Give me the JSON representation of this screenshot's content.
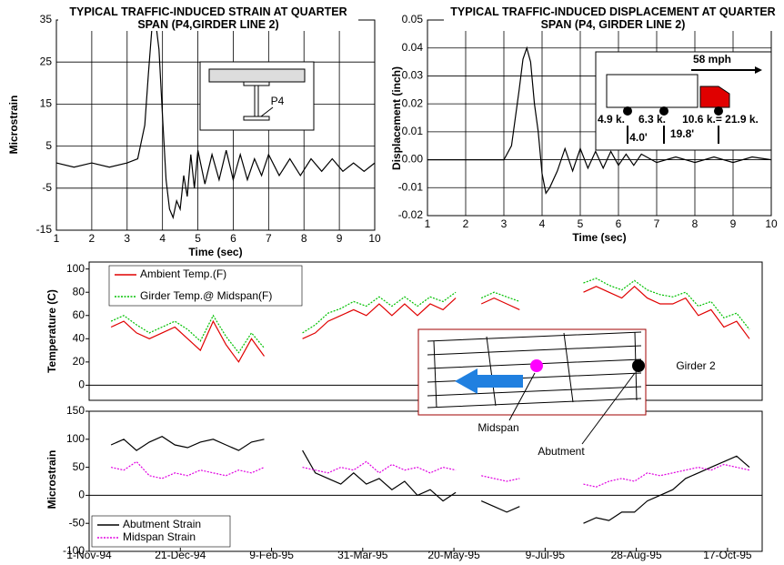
{
  "chart_data": [
    {
      "type": "line",
      "title": "TYPICAL TRAFFIC-INDUCED STRAIN AT QUARTER SPAN (P4,GIRDER LINE 2)",
      "x_label": "Time (sec)",
      "y_label": "Microstrain",
      "color": "#000000",
      "grid": true,
      "x": [
        1,
        1.5,
        2,
        2.5,
        3,
        3.3,
        3.5,
        3.6,
        3.7,
        3.8,
        3.9,
        4.0,
        4.1,
        4.2,
        4.3,
        4.4,
        4.5,
        4.6,
        4.7,
        4.8,
        4.9,
        5.0,
        5.2,
        5.4,
        5.6,
        5.8,
        6.0,
        6.2,
        6.4,
        6.6,
        6.8,
        7.0,
        7.3,
        7.6,
        7.9,
        8.2,
        8.5,
        8.8,
        9.1,
        9.4,
        9.7,
        10
      ],
      "values": [
        1,
        0,
        1,
        0,
        1,
        2,
        10,
        22,
        33,
        35,
        28,
        12,
        -3,
        -10,
        -12,
        -8,
        -10,
        -2,
        -7,
        3,
        -5,
        4,
        -4,
        3,
        -3,
        4,
        -3,
        3,
        -3,
        2,
        -2,
        3,
        -2,
        2,
        -2,
        2,
        -1,
        2,
        -1,
        1,
        -1,
        1
      ],
      "xlim": [
        1,
        10
      ],
      "xticks": [
        1,
        2,
        3,
        4,
        5,
        6,
        7,
        8,
        9,
        10
      ],
      "ylim": [
        -15,
        35
      ],
      "yticks": [
        -15,
        -5,
        5,
        15,
        25,
        35
      ],
      "annotations": [
        "P4"
      ]
    },
    {
      "type": "line",
      "title": "TYPICAL TRAFFIC-INDUCED DISPLACEMENT AT QUARTER SPAN (P4, GIRDER LINE 2)",
      "x_label": "Time (sec)",
      "y_label": "Displacement (inch)",
      "color": "#000000",
      "grid": true,
      "x": [
        1,
        2,
        3,
        3.2,
        3.4,
        3.5,
        3.6,
        3.7,
        3.8,
        3.9,
        4.0,
        4.1,
        4.2,
        4.4,
        4.6,
        4.8,
        5.0,
        5.2,
        5.4,
        5.6,
        5.8,
        6.0,
        6.2,
        6.4,
        6.6,
        7,
        7.5,
        8,
        8.5,
        9,
        9.5,
        10
      ],
      "values": [
        0,
        0,
        0,
        0.005,
        0.025,
        0.036,
        0.04,
        0.035,
        0.02,
        0.01,
        -0.005,
        -0.012,
        -0.01,
        -0.004,
        0.004,
        -0.004,
        0.004,
        -0.003,
        0.003,
        -0.003,
        0.003,
        -0.002,
        0.002,
        -0.002,
        0.002,
        -0.001,
        0.001,
        -0.001,
        0.001,
        -0.001,
        0.001,
        0
      ],
      "xlim": [
        1,
        10
      ],
      "xticks": [
        1,
        2,
        3,
        4,
        5,
        6,
        7,
        8,
        9,
        10
      ],
      "ylim": [
        -0.02,
        0.05
      ],
      "yticks": [
        -0.02,
        -0.01,
        {
          "value": 0,
          "label": "0.00"
        },
        0.01,
        0.02,
        0.03,
        0.04,
        0.05
      ],
      "annotations": [
        "58 mph",
        "4.9 k.",
        "6.3 k.",
        "10.6 k.= 21.9 k.",
        "4.0'",
        "19.8'"
      ]
    },
    {
      "type": "line",
      "y_label": "Temperature (C)",
      "grid": false,
      "x": [
        "1994-11-13",
        "1994-11-20",
        "1994-11-27",
        "1994-12-04",
        "1994-12-11",
        "1994-12-18",
        "1994-12-25",
        "1995-01-01",
        "1995-01-08",
        "1995-01-15",
        "1995-01-22",
        "1995-01-29",
        "1995-02-05",
        "1995-02-12",
        "1995-02-19",
        "1995-02-26",
        "1995-03-05",
        "1995-03-12",
        "1995-03-19",
        "1995-03-26",
        "1995-04-02",
        "1995-04-09",
        "1995-04-16",
        "1995-04-23",
        "1995-04-30",
        "1995-05-07",
        "1995-05-14",
        "1995-05-21",
        "1995-05-28",
        "1995-06-04",
        "1995-06-11",
        "1995-06-18",
        "1995-06-25",
        "1995-07-02",
        "1995-07-09",
        "1995-07-16",
        "1995-07-23",
        "1995-07-30",
        "1995-08-06",
        "1995-08-13",
        "1995-08-20",
        "1995-08-27",
        "1995-09-03",
        "1995-09-10",
        "1995-09-17",
        "1995-09-24",
        "1995-10-01",
        "1995-10-08",
        "1995-10-15",
        "1995-10-22",
        "1995-10-29"
      ],
      "series": [
        {
          "name": "Ambient Temp.(F)",
          "color": "#e00000",
          "line_style": "solid",
          "values": [
            50,
            55,
            45,
            40,
            45,
            50,
            40,
            30,
            55,
            35,
            20,
            40,
            25,
            null,
            null,
            40,
            45,
            55,
            60,
            65,
            60,
            70,
            60,
            70,
            60,
            70,
            65,
            75,
            null,
            70,
            75,
            70,
            65,
            null,
            null,
            null,
            null,
            80,
            85,
            80,
            75,
            85,
            75,
            70,
            70,
            75,
            60,
            65,
            50,
            55,
            40
          ]
        },
        {
          "name": "Girder Temp.@ Midspan(F)",
          "color": "#00c000",
          "line_style": "dotted",
          "values": [
            55,
            60,
            52,
            45,
            50,
            55,
            48,
            38,
            60,
            42,
            28,
            45,
            32,
            null,
            null,
            45,
            52,
            62,
            66,
            72,
            68,
            76,
            68,
            76,
            68,
            76,
            72,
            80,
            null,
            75,
            80,
            76,
            72,
            null,
            null,
            null,
            null,
            88,
            92,
            86,
            82,
            90,
            82,
            78,
            76,
            80,
            68,
            72,
            58,
            62,
            48
          ]
        }
      ],
      "xlim": [
        "1994-11-01",
        "1995-11-05"
      ],
      "ylim": [
        -13,
        106
      ],
      "yticks": [
        0,
        20,
        40,
        60,
        80,
        100
      ],
      "annotations": [
        "Girder 2",
        "Midspan",
        "Abutment"
      ]
    },
    {
      "type": "line",
      "y_label": "Microstrain",
      "grid": false,
      "x": [
        "1994-11-13",
        "1994-11-20",
        "1994-11-27",
        "1994-12-04",
        "1994-12-11",
        "1994-12-18",
        "1994-12-25",
        "1995-01-01",
        "1995-01-08",
        "1995-01-15",
        "1995-01-22",
        "1995-01-29",
        "1995-02-05",
        "1995-02-12",
        "1995-02-19",
        "1995-02-26",
        "1995-03-05",
        "1995-03-12",
        "1995-03-19",
        "1995-03-26",
        "1995-04-02",
        "1995-04-09",
        "1995-04-16",
        "1995-04-23",
        "1995-04-30",
        "1995-05-07",
        "1995-05-14",
        "1995-05-21",
        "1995-05-28",
        "1995-06-04",
        "1995-06-11",
        "1995-06-18",
        "1995-06-25",
        "1995-07-02",
        "1995-07-09",
        "1995-07-16",
        "1995-07-23",
        "1995-07-30",
        "1995-08-06",
        "1995-08-13",
        "1995-08-20",
        "1995-08-27",
        "1995-09-03",
        "1995-09-10",
        "1995-09-17",
        "1995-09-24",
        "1995-10-01",
        "1995-10-08",
        "1995-10-15",
        "1995-10-22",
        "1995-10-29"
      ],
      "series": [
        {
          "name": "Abutment Strain",
          "color": "#000000",
          "line_style": "solid",
          "values": [
            90,
            100,
            80,
            95,
            105,
            90,
            85,
            95,
            100,
            90,
            80,
            95,
            100,
            null,
            null,
            80,
            40,
            30,
            20,
            40,
            20,
            30,
            10,
            25,
            0,
            10,
            -10,
            5,
            null,
            -10,
            -20,
            -30,
            -20,
            null,
            null,
            null,
            null,
            -50,
            -40,
            -45,
            -30,
            -30,
            -10,
            0,
            10,
            30,
            40,
            50,
            60,
            70,
            50
          ]
        },
        {
          "name": "Midspan Strain",
          "color": "#e000e0",
          "line_style": "dotted",
          "values": [
            50,
            45,
            60,
            35,
            30,
            40,
            35,
            45,
            40,
            35,
            45,
            40,
            50,
            null,
            null,
            50,
            45,
            40,
            50,
            45,
            60,
            40,
            55,
            45,
            50,
            40,
            50,
            45,
            null,
            35,
            30,
            25,
            30,
            null,
            null,
            null,
            null,
            20,
            15,
            25,
            30,
            25,
            40,
            35,
            40,
            45,
            50,
            45,
            55,
            50,
            45
          ]
        }
      ],
      "xlim": [
        "1994-11-01",
        "1995-11-05"
      ],
      "xticks": [
        {
          "value": "1994-11-01",
          "label": "1-Nov-94"
        },
        {
          "value": "1994-12-21",
          "label": "21-Dec-94"
        },
        {
          "value": "1995-02-09",
          "label": "9-Feb-95"
        },
        {
          "value": "1995-03-31",
          "label": "31-Mar-95"
        },
        {
          "value": "1995-05-20",
          "label": "20-May-95"
        },
        {
          "value": "1995-07-09",
          "label": "9-Jul-95"
        },
        {
          "value": "1995-08-28",
          "label": "28-Aug-95"
        },
        {
          "value": "1995-10-17",
          "label": "17-Oct-95"
        }
      ],
      "ylim": [
        -100,
        150
      ],
      "yticks": [
        -100,
        -50,
        0,
        50,
        100,
        150
      ]
    }
  ]
}
